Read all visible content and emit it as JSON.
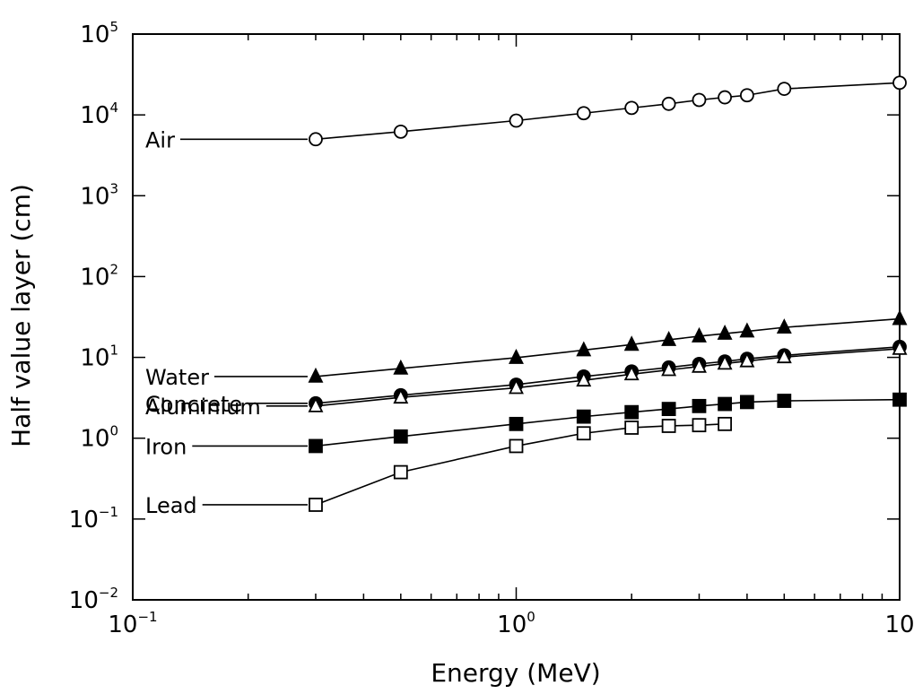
{
  "chart_data": {
    "type": "line",
    "title": "",
    "xlabel": "Energy (MeV)",
    "ylabel": "Half value layer (cm)",
    "xscale": "log",
    "yscale": "log",
    "xlim": [
      0.1,
      10
    ],
    "ylim": [
      0.01,
      100000
    ],
    "x_ticks": [
      {
        "base": "10",
        "exp": "−1",
        "value": 0.1
      },
      {
        "base": "10",
        "exp": "0",
        "value": 1
      },
      {
        "base": "10",
        "exp": "",
        "value": 10
      }
    ],
    "y_ticks": [
      {
        "base": "10",
        "exp": "5",
        "value": 100000
      },
      {
        "base": "10",
        "exp": "4",
        "value": 10000
      },
      {
        "base": "10",
        "exp": "3",
        "value": 1000
      },
      {
        "base": "10",
        "exp": "2",
        "value": 100
      },
      {
        "base": "10",
        "exp": "1",
        "value": 10
      },
      {
        "base": "10",
        "exp": "0",
        "value": 1
      },
      {
        "base": "10",
        "exp": "−1",
        "value": 0.1
      },
      {
        "base": "10",
        "exp": "−2",
        "value": 0.01
      }
    ],
    "legend": "labels placed at left of each curve",
    "series": [
      {
        "name": "Air",
        "marker": "circle-open",
        "x": [
          0.3,
          0.5,
          1.0,
          1.5,
          2.0,
          2.5,
          3.0,
          3.5,
          4.0,
          5.0,
          10.0
        ],
        "y": [
          5000,
          6200,
          8500,
          10500,
          12200,
          13700,
          15300,
          16500,
          17500,
          21000,
          25000
        ]
      },
      {
        "name": "Water",
        "marker": "triangle-filled",
        "x": [
          0.3,
          0.5,
          1.0,
          1.5,
          2.0,
          2.5,
          3.0,
          3.5,
          4.0,
          5.0,
          10.0
        ],
        "y": [
          5.8,
          7.3,
          9.9,
          12.3,
          14.4,
          16.5,
          18.3,
          19.7,
          21.0,
          23.5,
          30.0
        ]
      },
      {
        "name": "Concrete",
        "marker": "circle-filled",
        "x": [
          0.3,
          0.5,
          1.0,
          1.5,
          2.0,
          2.5,
          3.0,
          3.5,
          4.0,
          5.0,
          10.0
        ],
        "y": [
          2.7,
          3.4,
          4.6,
          5.8,
          6.7,
          7.5,
          8.3,
          8.9,
          9.6,
          10.6,
          13.5
        ]
      },
      {
        "name": "Aluminium",
        "marker": "triangle-open",
        "x": [
          0.3,
          0.5,
          1.0,
          1.5,
          2.0,
          2.5,
          3.0,
          3.5,
          4.0,
          5.0,
          10.0
        ],
        "y": [
          2.5,
          3.2,
          4.2,
          5.2,
          6.2,
          7.0,
          7.7,
          8.4,
          9.0,
          10.1,
          12.8
        ]
      },
      {
        "name": "Iron",
        "marker": "square-filled",
        "x": [
          0.3,
          0.5,
          1.0,
          1.5,
          2.0,
          2.5,
          3.0,
          3.5,
          4.0,
          5.0,
          10.0
        ],
        "y": [
          0.8,
          1.05,
          1.5,
          1.85,
          2.1,
          2.3,
          2.5,
          2.65,
          2.8,
          2.9,
          3.0
        ]
      },
      {
        "name": "Lead",
        "marker": "square-open",
        "x": [
          0.3,
          0.5,
          1.0,
          1.5,
          2.0,
          2.5,
          3.0,
          3.5
        ],
        "y": [
          0.15,
          0.38,
          0.8,
          1.15,
          1.35,
          1.42,
          1.45,
          1.5
        ]
      }
    ],
    "label_anchor_x": 0.26
  },
  "colors": {
    "ink": "#000000",
    "background": "#ffffff"
  }
}
